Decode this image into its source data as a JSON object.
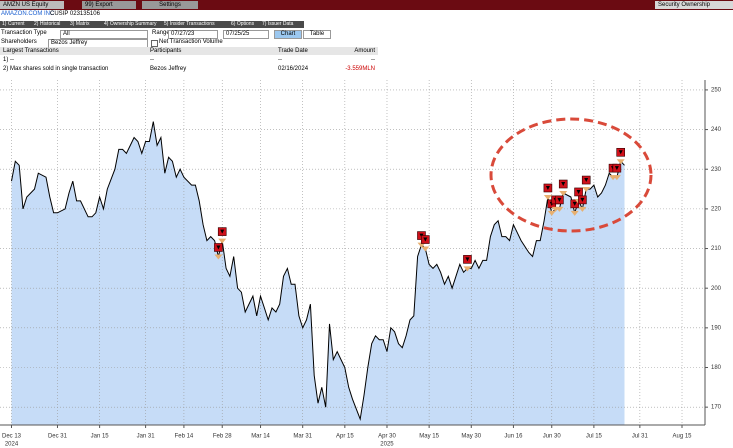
{
  "toolbar": {
    "security": "AMZN US Equity",
    "export": "99) Export",
    "settings": "Settings",
    "function": "Security Ownership"
  },
  "header": {
    "company": "AMAZON.COM INC",
    "cusip": "CUSIP 023135106"
  },
  "tabs": [
    "1) Current",
    "2) Historical",
    "3) Matrix",
    "4) Ownership Summary",
    "5) Insider Transactions",
    "6) Options",
    "7) Issuer Data"
  ],
  "filters": {
    "transaction_type_label": "Transaction Type",
    "transaction_type": "All",
    "range_label": "Range",
    "range_start": "07/27/23",
    "range_end": "07/25/25",
    "chart": "Chart",
    "table": "Table",
    "shareholders_label": "Shareholders",
    "shareholders": "Bezos Jeffrey",
    "net_volume": "Net Transaction Volume"
  },
  "table": {
    "columns": [
      "Largest Transactions",
      "Participants",
      "Trade Date",
      "Amount"
    ],
    "rows": [
      [
        "1) --",
        "--",
        "--",
        "--"
      ],
      [
        "2) Max shares sold in single transaction",
        "Bezos Jeffrey",
        "02/16/2024",
        "-3.559MLN"
      ]
    ]
  },
  "chart_data": {
    "type": "area",
    "color": "#000000",
    "fill": "#c6dcf7",
    "grid": true,
    "x": [
      "2024-12-13",
      "2024-12-16",
      "2024-12-17",
      "2024-12-18",
      "2024-12-19",
      "2024-12-20",
      "2024-12-23",
      "2024-12-24",
      "2024-12-26",
      "2024-12-27",
      "2024-12-30",
      "2024-12-31",
      "2025-01-02",
      "2025-01-03",
      "2025-01-06",
      "2025-01-07",
      "2025-01-08",
      "2025-01-10",
      "2025-01-13",
      "2025-01-14",
      "2025-01-15",
      "2025-01-16",
      "2025-01-17",
      "2025-01-21",
      "2025-01-22",
      "2025-01-23",
      "2025-01-24",
      "2025-01-27",
      "2025-01-28",
      "2025-01-29",
      "2025-01-30",
      "2025-01-31",
      "2025-02-03",
      "2025-02-04",
      "2025-02-05",
      "2025-02-06",
      "2025-02-07",
      "2025-02-10",
      "2025-02-11",
      "2025-02-12",
      "2025-02-13",
      "2025-02-14",
      "2025-02-18",
      "2025-02-19",
      "2025-02-20",
      "2025-02-21",
      "2025-02-24",
      "2025-02-25",
      "2025-02-26",
      "2025-02-27",
      "2025-02-28",
      "2025-03-03",
      "2025-03-04",
      "2025-03-05",
      "2025-03-06",
      "2025-03-07",
      "2025-03-10",
      "2025-03-11",
      "2025-03-12",
      "2025-03-13",
      "2025-03-14",
      "2025-03-17",
      "2025-03-18",
      "2025-03-19",
      "2025-03-20",
      "2025-03-21",
      "2025-03-24",
      "2025-03-25",
      "2025-03-26",
      "2025-03-27",
      "2025-03-28",
      "2025-03-31",
      "2025-04-01",
      "2025-04-02",
      "2025-04-03",
      "2025-04-04",
      "2025-04-07",
      "2025-04-08",
      "2025-04-09",
      "2025-04-10",
      "2025-04-11",
      "2025-04-14",
      "2025-04-15",
      "2025-04-16",
      "2025-04-17",
      "2025-04-21",
      "2025-04-22",
      "2025-04-23",
      "2025-04-24",
      "2025-04-25",
      "2025-04-28",
      "2025-04-29",
      "2025-04-30",
      "2025-05-01",
      "2025-05-02",
      "2025-05-05",
      "2025-05-06",
      "2025-05-07",
      "2025-05-08",
      "2025-05-09",
      "2025-05-12",
      "2025-05-13",
      "2025-05-14",
      "2025-05-15",
      "2025-05-16",
      "2025-05-19",
      "2025-05-20",
      "2025-05-21",
      "2025-05-22",
      "2025-05-23",
      "2025-05-27",
      "2025-05-28",
      "2025-05-29",
      "2025-05-30",
      "2025-06-02",
      "2025-06-03",
      "2025-06-04",
      "2025-06-05",
      "2025-06-06",
      "2025-06-09",
      "2025-06-10",
      "2025-06-11",
      "2025-06-12",
      "2025-06-13",
      "2025-06-16",
      "2025-06-17",
      "2025-06-18",
      "2025-06-20",
      "2025-06-23",
      "2025-06-24",
      "2025-06-25",
      "2025-06-26",
      "2025-06-27",
      "2025-06-30",
      "2025-07-01",
      "2025-07-02",
      "2025-07-03",
      "2025-07-07",
      "2025-07-08",
      "2025-07-09",
      "2025-07-10",
      "2025-07-11",
      "2025-07-14",
      "2025-07-15",
      "2025-07-16",
      "2025-07-17",
      "2025-07-18",
      "2025-07-21",
      "2025-07-22",
      "2025-07-23",
      "2025-07-24",
      "2025-07-25"
    ],
    "values": [
      227,
      232,
      231,
      220,
      223,
      224,
      225,
      229,
      228,
      223,
      219,
      219,
      220,
      224,
      227,
      222,
      222,
      218,
      218,
      219,
      223,
      220,
      225,
      230,
      235,
      235,
      234,
      236,
      238,
      237,
      234,
      237,
      237,
      242,
      236,
      238,
      229,
      233,
      232,
      228,
      230,
      228,
      226,
      226,
      222,
      216,
      212,
      213,
      212,
      208,
      212,
      205,
      203,
      208,
      200,
      199,
      194,
      196,
      198,
      193,
      198,
      195,
      192,
      195,
      194,
      196,
      203,
      205,
      201,
      201,
      193,
      190,
      192,
      196,
      178,
      171,
      175,
      170,
      191,
      182,
      184,
      182,
      180,
      175,
      172,
      167,
      173,
      180,
      186,
      188,
      187,
      187,
      184,
      190,
      189,
      186,
      185,
      188,
      192,
      193,
      208,
      211,
      210,
      206,
      205,
      206,
      204,
      201,
      203,
      200,
      206,
      204,
      205,
      205,
      207,
      205,
      207,
      207,
      213,
      216,
      217,
      213,
      213,
      212,
      216,
      214,
      212,
      209,
      208,
      212,
      212,
      217,
      223,
      219,
      220,
      220,
      224,
      223,
      219,
      222,
      220,
      225,
      225,
      226,
      223,
      224,
      226,
      229,
      228,
      228,
      232,
      231
    ],
    "transaction_dates": [
      "2025-02-27",
      "2025-02-28",
      "2025-05-13",
      "2025-05-14",
      "2025-05-29",
      "2025-06-27",
      "2025-06-30",
      "2025-07-01",
      "2025-07-02",
      "2025-07-03",
      "2025-07-08",
      "2025-07-09",
      "2025-07-10",
      "2025-07-11",
      "2025-07-22",
      "2025-07-23",
      "2025-07-24"
    ],
    "xlim": [
      "2024-12-10",
      "2025-08-25"
    ],
    "xticks": [
      {
        "value": "2024-12-13",
        "label": "Dec 13"
      },
      {
        "value": "2024-12-31",
        "label": "Dec 31"
      },
      {
        "value": "2025-01-15",
        "label": "Jan 15"
      },
      {
        "value": "2025-01-31",
        "label": "Jan 31"
      },
      {
        "value": "2025-02-14",
        "label": "Feb 14"
      },
      {
        "value": "2025-02-28",
        "label": "Feb 28"
      },
      {
        "value": "2025-03-14",
        "label": "Mar 14"
      },
      {
        "value": "2025-03-31",
        "label": "Mar 31"
      },
      {
        "value": "2025-04-15",
        "label": "Apr 15"
      },
      {
        "value": "2025-04-30",
        "label": "Apr 30"
      },
      {
        "value": "2025-05-15",
        "label": "May 15"
      },
      {
        "value": "2025-05-30",
        "label": "May 30"
      },
      {
        "value": "2025-06-16",
        "label": "Jun 16"
      },
      {
        "value": "2025-06-30",
        "label": "Jun 30"
      },
      {
        "value": "2025-07-15",
        "label": "Jul 15"
      },
      {
        "value": "2025-07-31",
        "label": "Jul 31"
      },
      {
        "value": "2025-08-15",
        "label": "Aug 15"
      }
    ],
    "year_labels": [
      {
        "value": "2024-12-13",
        "label": "2024"
      },
      {
        "value": "2025-04-30",
        "label": "2025"
      }
    ],
    "ylim": [
      165.5,
      252.5
    ],
    "yticks": [
      170,
      180,
      190,
      200,
      210,
      220,
      230,
      240,
      250
    ]
  }
}
